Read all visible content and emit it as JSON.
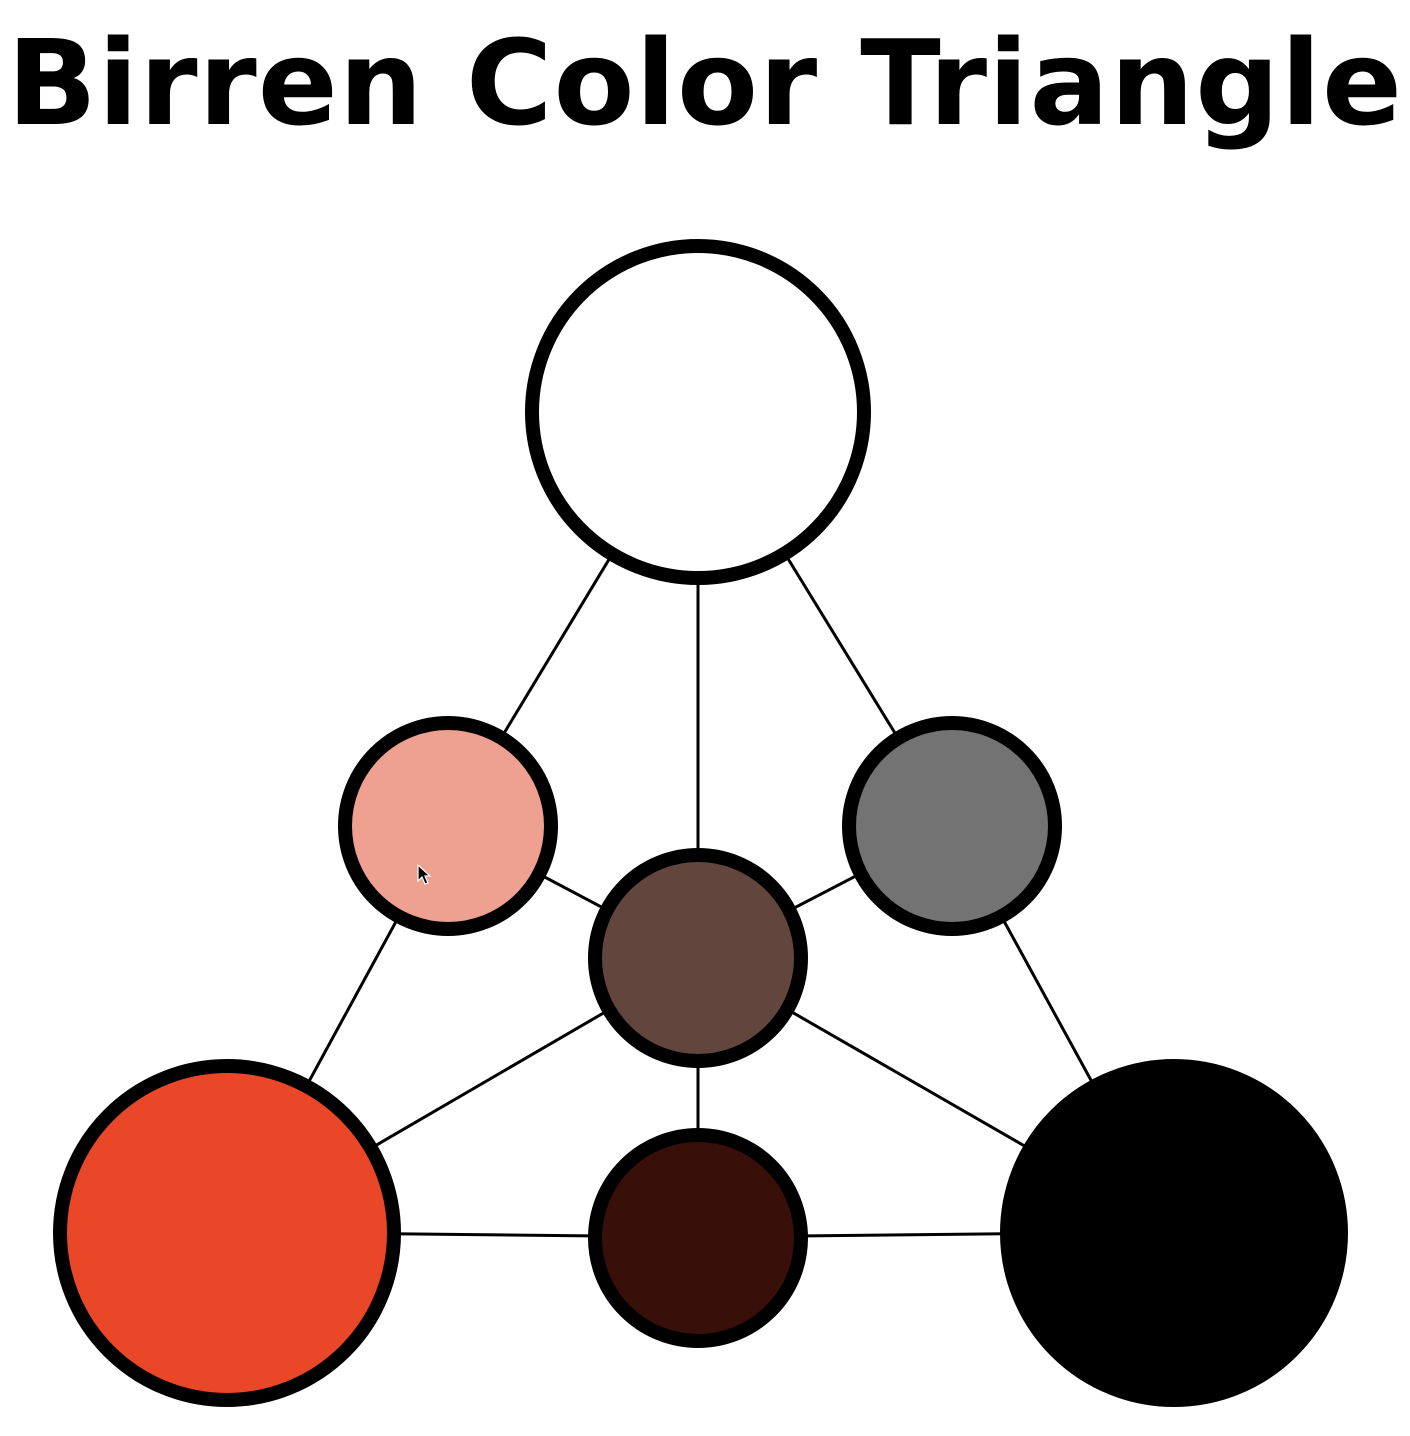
{
  "page": {
    "title": "Birren Color Triangle",
    "background": "#ffffff"
  },
  "diagram": {
    "nodes": [
      {
        "name": "white-swatch",
        "color": "#ffffff"
      },
      {
        "name": "tint-swatch",
        "color": "#efa191"
      },
      {
        "name": "gray-swatch",
        "color": "#737373"
      },
      {
        "name": "tone-swatch",
        "color": "#62463e"
      },
      {
        "name": "color-swatch",
        "color": "#e94728"
      },
      {
        "name": "shade-swatch",
        "color": "#391009"
      },
      {
        "name": "black-swatch",
        "color": "#000000"
      }
    ],
    "outline_color": "#000000",
    "connector_color": "#000000"
  },
  "cursor": {
    "icon": "mouse-pointer-icon"
  }
}
